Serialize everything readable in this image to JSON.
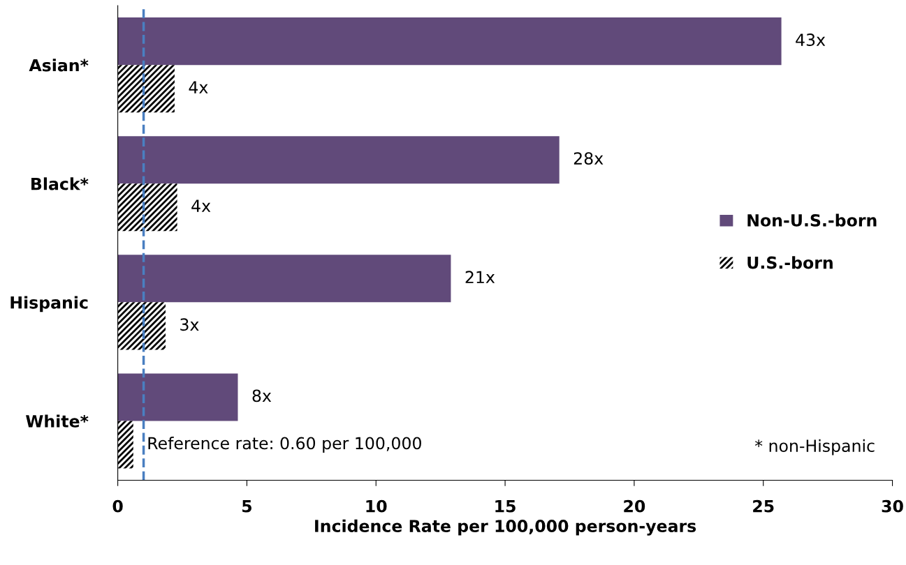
{
  "chart_data": {
    "type": "bar",
    "orientation": "horizontal",
    "xlabel": "Incidence Rate per 100,000 person-years",
    "categories": [
      "Asian*",
      "Black*",
      "Hispanic",
      "White*"
    ],
    "series": [
      {
        "name": "Non-U.S.-born",
        "color": "#614a7a",
        "values": [
          25.7,
          17.1,
          12.9,
          4.65
        ]
      },
      {
        "name": "U.S.-born",
        "color": "#000000",
        "values": [
          2.2,
          2.3,
          1.85,
          0.6
        ]
      }
    ],
    "xlim": [
      0,
      30
    ],
    "xticks": [
      0,
      5,
      10,
      15,
      20,
      25,
      30
    ],
    "ref_lines": [
      {
        "axis": "x",
        "value": 1.0,
        "color": "#4a7fc1",
        "line_style": "dashed"
      }
    ],
    "annotations": [
      {
        "text": "43x",
        "x": 25.7,
        "y": "Asian*"
      },
      {
        "text": "4x",
        "x": 2.2,
        "y": "Asian*"
      },
      {
        "text": "28x",
        "x": 17.1,
        "y": "Black*"
      },
      {
        "text": "4x",
        "x": 2.3,
        "y": "Black*"
      },
      {
        "text": "21x",
        "x": 12.9,
        "y": "Hispanic"
      },
      {
        "text": "3x",
        "x": 1.85,
        "y": "Hispanic"
      },
      {
        "text": "8x",
        "x": 4.65,
        "y": "White*"
      },
      {
        "text": "Reference rate: 0.60 per 100,000",
        "x": 0.6,
        "y": "White*"
      },
      "* non-Hispanic"
    ],
    "legend": "right",
    "grid": false
  }
}
